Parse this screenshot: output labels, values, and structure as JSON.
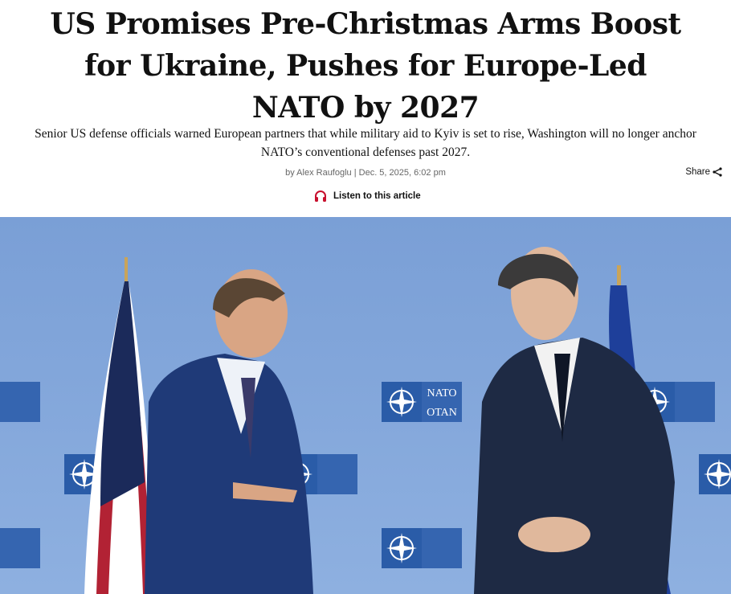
{
  "article": {
    "headline_lines": [
      "US Promises Pre-Christmas Arms Boost",
      "for Ukraine, Pushes for Europe-Led",
      "NATO by 2027"
    ],
    "dek_lines": [
      "Senior US defense officials warned European partners that while military aid to Kyiv is set to rise, Washington will no longer anchor",
      "NATO’s conventional defenses past 2027."
    ],
    "byline": "by Alex Raufoglu | Dec. 5, 2025, 6:02 pm",
    "share_label": "Share",
    "listen_label": "Listen to this article",
    "photo": {
      "backdrop_logo_text": [
        "NATO",
        "OTAN"
      ]
    }
  },
  "colors": {
    "accent": "#c8102e",
    "backdrop": "#7fa2d8"
  },
  "icons": {
    "share": "share-icon",
    "listen": "headphones-icon"
  }
}
